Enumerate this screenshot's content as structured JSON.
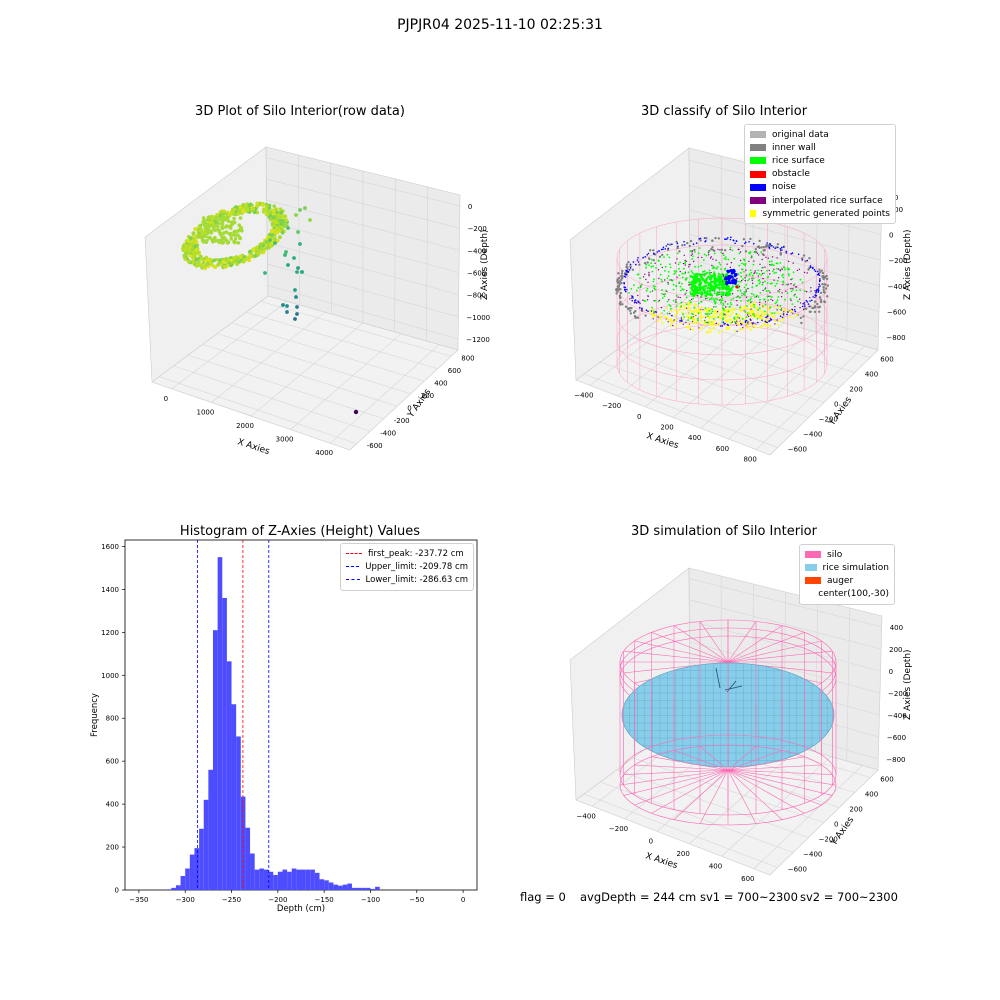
{
  "suptitle": "PJPJR04 2025-11-10 02:25:31",
  "chart_data": [
    {
      "type": "scatter3d",
      "title": "3D Plot of Silo Interior(row data)",
      "xlabel": "X Axies",
      "ylabel": "Y Axies",
      "zlabel": "Z Axies (Depth)",
      "x_ticks": [
        "0",
        "1000",
        "2000",
        "3000",
        "4000"
      ],
      "y_ticks": [
        "-600",
        "-400",
        "-200",
        "0",
        "200",
        "400",
        "600",
        "800"
      ],
      "z_ticks": [
        "0",
        "−200",
        "−400",
        "−600",
        "−800",
        "−1000",
        "−1200"
      ],
      "grid": true,
      "colormap": "viridis"
    },
    {
      "type": "scatter3d",
      "title": "3D classify of Silo Interior",
      "xlabel": "X Axies",
      "ylabel": "Y Axies",
      "zlabel": "Z Axies (Depth)",
      "x_ticks": [
        "−400",
        "−200",
        "0",
        "200",
        "400",
        "600",
        "800"
      ],
      "y_ticks": [
        "−600",
        "−400",
        "−200",
        "0",
        "200",
        "400",
        "600"
      ],
      "z_ticks": [
        "200",
        "0",
        "−200",
        "−400",
        "−600",
        "−800"
      ],
      "z_top_partial": "400",
      "grid": true,
      "legend_position": "top-right",
      "legend": [
        {
          "label": "original data",
          "color": "#b3b3b3"
        },
        {
          "label": "inner wall",
          "color": "#808080"
        },
        {
          "label": "rice surface",
          "color": "#00ff00"
        },
        {
          "label": "obstacle",
          "color": "#ff0000"
        },
        {
          "label": "noise",
          "color": "#0000ff"
        },
        {
          "label": "interpolated rice surface",
          "color": "#800080"
        },
        {
          "label": "symmetric generated points",
          "color": "#ffff00"
        }
      ]
    },
    {
      "type": "bar",
      "title": "Histogram of Z-Axies (Height) Values",
      "xlabel": "Depth (cm)",
      "ylabel": "Frequency",
      "xlim": [
        -365,
        15
      ],
      "ylim": [
        0,
        1630
      ],
      "x_ticks": [
        -350,
        -300,
        -250,
        -200,
        -150,
        -100,
        -50,
        0
      ],
      "y_ticks": [
        0,
        200,
        400,
        600,
        800,
        1000,
        1200,
        1400,
        1600
      ],
      "bar_color": "#4d4dff",
      "bins_start": -320,
      "bin_width": 5,
      "values": [
        3,
        10,
        22,
        65,
        100,
        165,
        195,
        285,
        420,
        560,
        1210,
        1550,
        1360,
        1065,
        865,
        715,
        435,
        290,
        170,
        95,
        100,
        95,
        85,
        70,
        85,
        95,
        85,
        100,
        95,
        95,
        95,
        95,
        80,
        50,
        45,
        35,
        25,
        20,
        25,
        30,
        10,
        10,
        10,
        10,
        5,
        15
      ],
      "lines": [
        {
          "label": "first_peak: -237.72 cm",
          "x": -237.72,
          "color": "#ff0000"
        },
        {
          "label": "Upper_limit: -209.78 cm",
          "x": -209.78,
          "color": "#0000ff"
        },
        {
          "label": "Lower_limit: -286.63 cm",
          "x": -286.63,
          "color": "#0000ff"
        }
      ],
      "legend_position": "top-right"
    },
    {
      "type": "surface3d",
      "title": "3D simulation of Silo Interior",
      "xlabel": "X Axies",
      "ylabel": "Y Axies",
      "zlabel": "Z Axies (Depth)",
      "x_ticks": [
        "−400",
        "−200",
        "0",
        "200",
        "400",
        "600"
      ],
      "y_ticks": [
        "−600",
        "−400",
        "−200",
        "0",
        "200",
        "400",
        "600"
      ],
      "z_ticks": [
        "400",
        "200",
        "0",
        "−200",
        "−400",
        "−600",
        "−800"
      ],
      "grid": true,
      "legend_position": "top-right",
      "legend": [
        {
          "label": "silo",
          "color": "#ff69b4"
        },
        {
          "label": "rice simulation",
          "color": "#87ceeb"
        },
        {
          "label": "auger",
          "color": "#ff4500"
        },
        {
          "label": "center(100,-30)",
          "color": "#ffffff"
        }
      ]
    }
  ],
  "status": {
    "flag": "flag = 0",
    "avg_depth": "avgDepth = 244 cm",
    "sv1": "sv1 = 700~2300",
    "sv2": "sv2 = 700~2300"
  }
}
